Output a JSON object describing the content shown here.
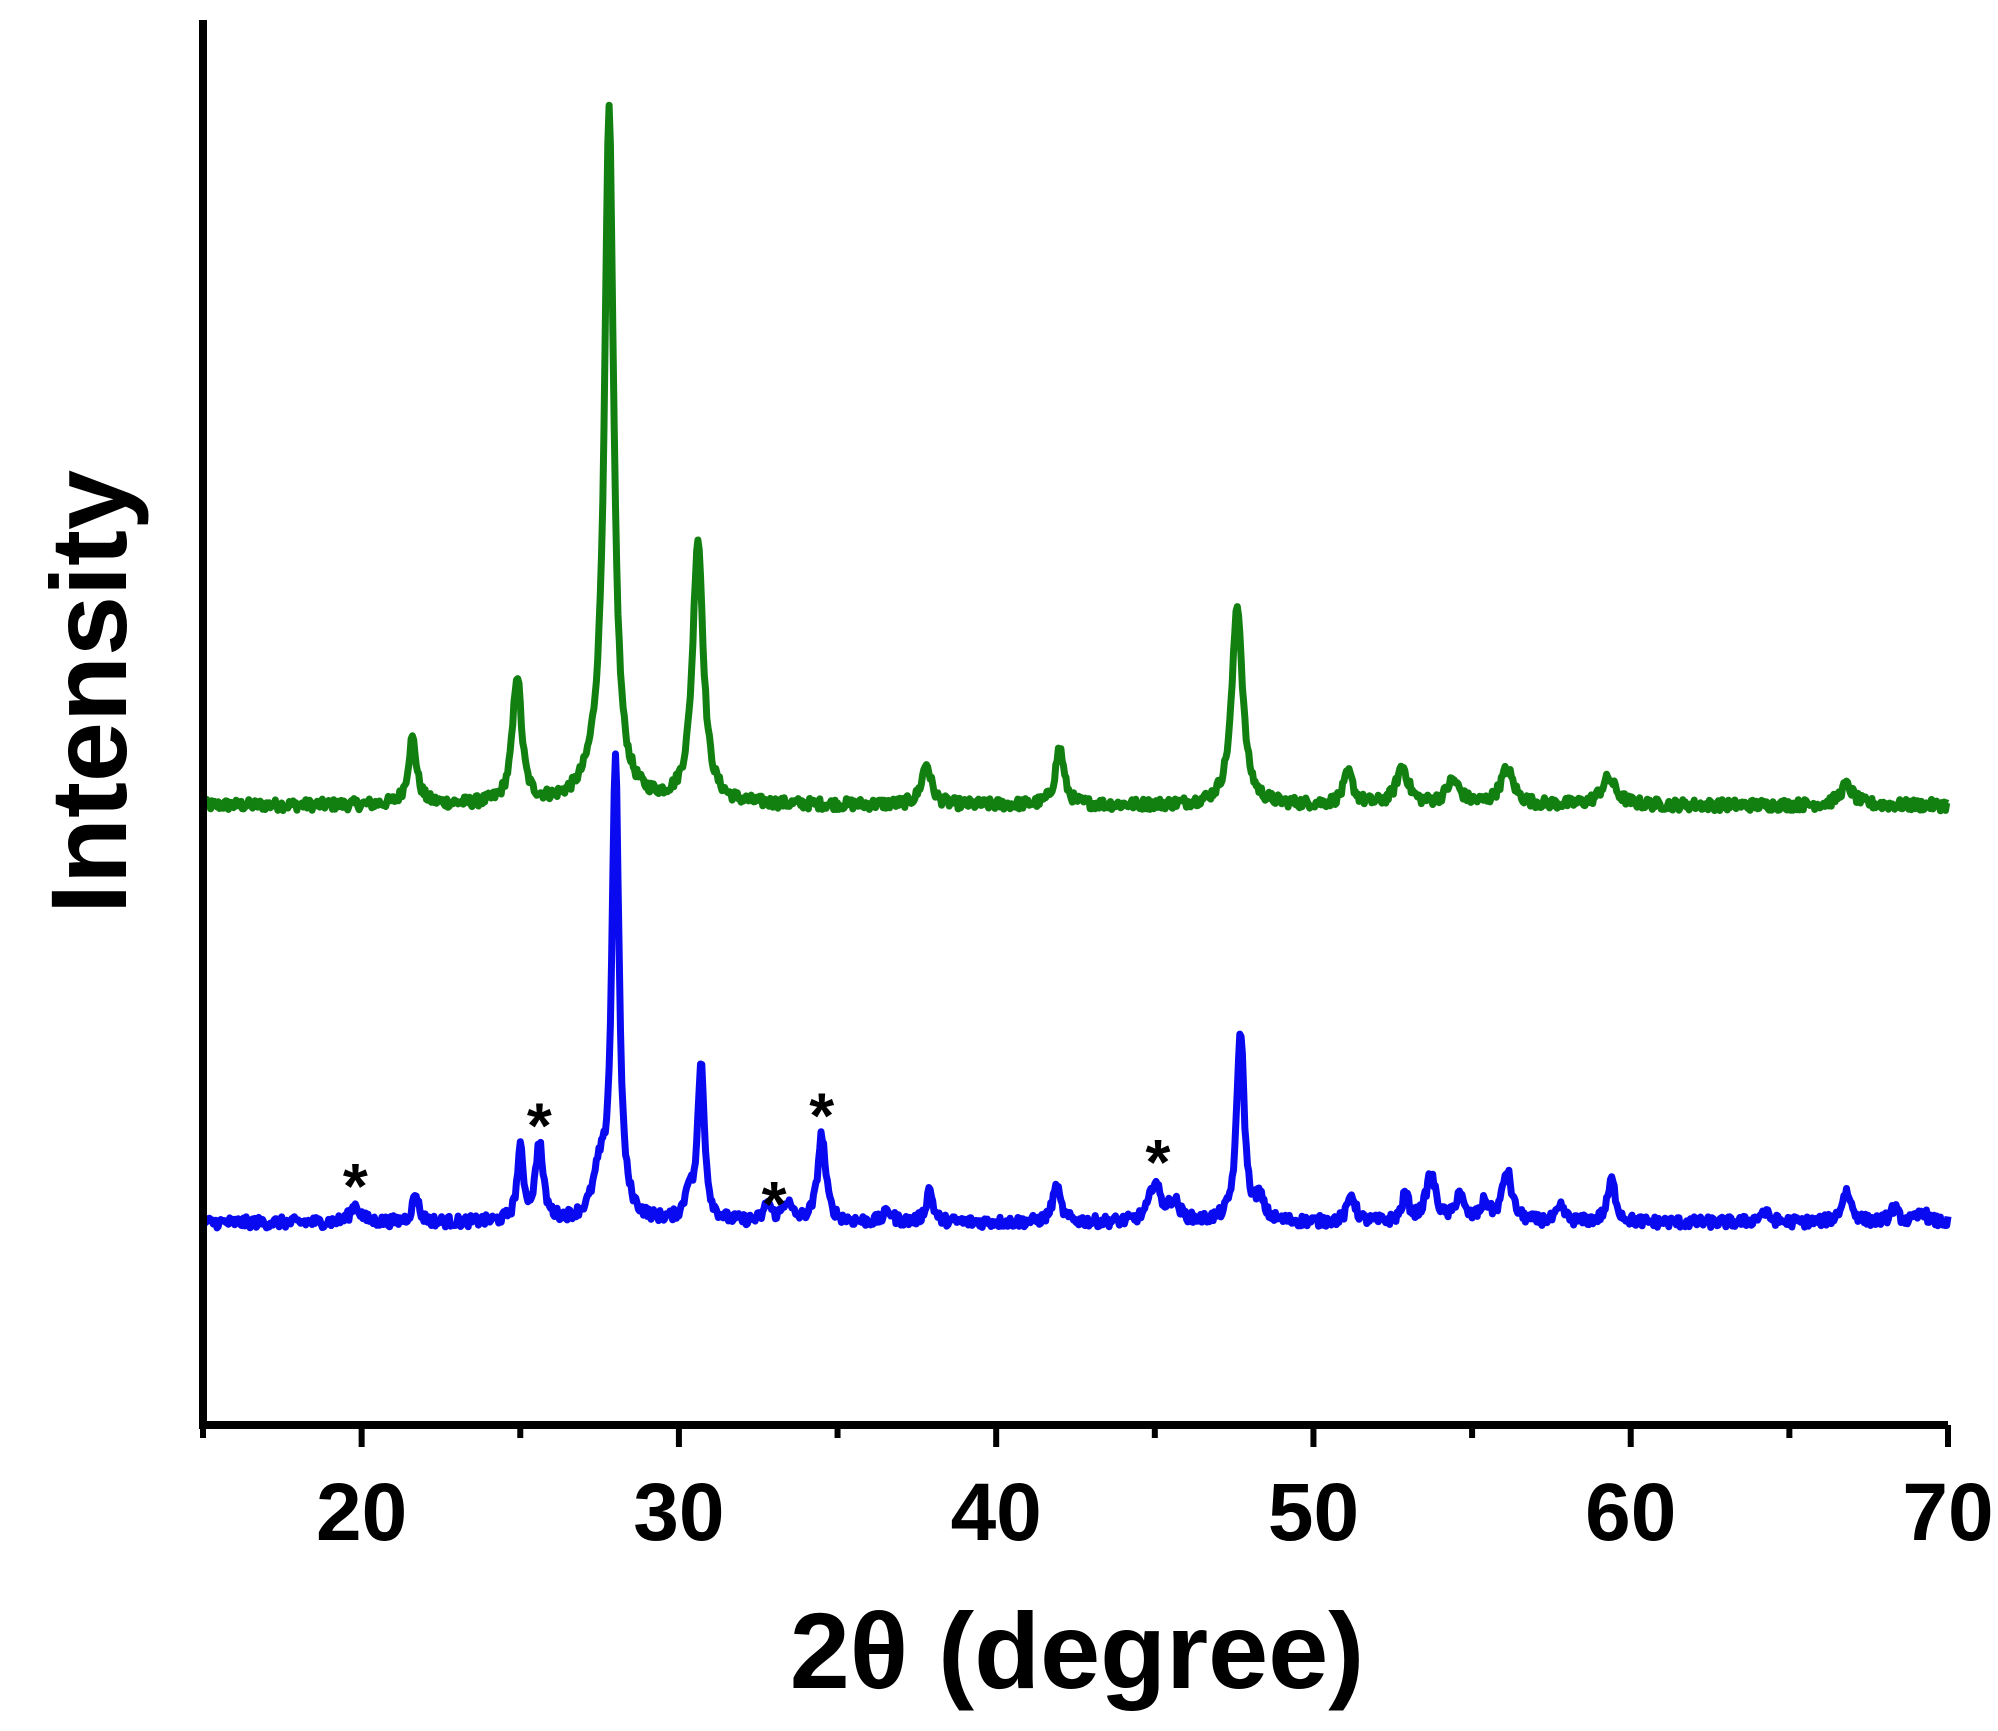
{
  "chart_data": {
    "type": "line",
    "title": "",
    "xlabel": "2θ (degree)",
    "ylabel": "Intensity",
    "xlim": [
      15,
      70
    ],
    "ylim": [
      0,
      1
    ],
    "grid": false,
    "legend": "none",
    "x_ticks": [
      20,
      30,
      40,
      50,
      60,
      70
    ],
    "y_ticks": [],
    "series": [
      {
        "color": "#118011",
        "baseline": 0.441,
        "noise": 0.004,
        "peaks": [
          {
            "x": 21.6,
            "h": 0.047,
            "w": 0.16
          },
          {
            "x": 24.9,
            "h": 0.091,
            "w": 0.17
          },
          {
            "x": 27.8,
            "h": 0.48,
            "w": 0.17
          },
          {
            "x": 27.5,
            "h": 0.018,
            "w": 0.5
          },
          {
            "x": 30.6,
            "h": 0.188,
            "w": 0.2
          },
          {
            "x": 37.8,
            "h": 0.029,
            "w": 0.18
          },
          {
            "x": 42.0,
            "h": 0.041,
            "w": 0.16
          },
          {
            "x": 47.6,
            "h": 0.143,
            "w": 0.2
          },
          {
            "x": 51.1,
            "h": 0.022,
            "w": 0.18
          },
          {
            "x": 52.8,
            "h": 0.027,
            "w": 0.22
          },
          {
            "x": 54.4,
            "h": 0.017,
            "w": 0.25
          },
          {
            "x": 56.1,
            "h": 0.025,
            "w": 0.25
          },
          {
            "x": 59.3,
            "h": 0.019,
            "w": 0.28
          },
          {
            "x": 66.8,
            "h": 0.014,
            "w": 0.25
          }
        ]
      },
      {
        "color": "#0a0af0",
        "baseline": 0.144,
        "noise": 0.004,
        "peaks": [
          {
            "x": 19.8,
            "h": 0.012,
            "w": 0.18
          },
          {
            "x": 21.7,
            "h": 0.02,
            "w": 0.12
          },
          {
            "x": 25.0,
            "h": 0.05,
            "w": 0.12
          },
          {
            "x": 25.6,
            "h": 0.055,
            "w": 0.14
          },
          {
            "x": 27.5,
            "h": 0.03,
            "w": 0.25
          },
          {
            "x": 28.0,
            "h": 0.33,
            "w": 0.13
          },
          {
            "x": 30.3,
            "h": 0.02,
            "w": 0.12
          },
          {
            "x": 30.7,
            "h": 0.112,
            "w": 0.13
          },
          {
            "x": 32.8,
            "h": 0.013,
            "w": 0.12
          },
          {
            "x": 33.4,
            "h": 0.014,
            "w": 0.16
          },
          {
            "x": 34.5,
            "h": 0.062,
            "w": 0.15
          },
          {
            "x": 36.6,
            "h": 0.008,
            "w": 0.15
          },
          {
            "x": 37.9,
            "h": 0.024,
            "w": 0.12
          },
          {
            "x": 41.9,
            "h": 0.025,
            "w": 0.15
          },
          {
            "x": 45.0,
            "h": 0.028,
            "w": 0.2
          },
          {
            "x": 45.6,
            "h": 0.014,
            "w": 0.2
          },
          {
            "x": 47.7,
            "h": 0.137,
            "w": 0.14
          },
          {
            "x": 48.3,
            "h": 0.015,
            "w": 0.15
          },
          {
            "x": 51.2,
            "h": 0.02,
            "w": 0.14
          },
          {
            "x": 52.9,
            "h": 0.02,
            "w": 0.12
          },
          {
            "x": 53.7,
            "h": 0.034,
            "w": 0.18
          },
          {
            "x": 54.6,
            "h": 0.02,
            "w": 0.14
          },
          {
            "x": 55.4,
            "h": 0.013,
            "w": 0.15
          },
          {
            "x": 56.1,
            "h": 0.036,
            "w": 0.18
          },
          {
            "x": 57.8,
            "h": 0.01,
            "w": 0.15
          },
          {
            "x": 59.4,
            "h": 0.03,
            "w": 0.15
          },
          {
            "x": 64.2,
            "h": 0.007,
            "w": 0.2
          },
          {
            "x": 66.8,
            "h": 0.022,
            "w": 0.18
          },
          {
            "x": 68.3,
            "h": 0.01,
            "w": 0.15
          },
          {
            "x": 69.2,
            "h": 0.008,
            "w": 0.15
          }
        ]
      }
    ],
    "annotations": [
      {
        "text": "*",
        "x": 19.8,
        "y": 0.183
      },
      {
        "text": "*",
        "x": 25.6,
        "y": 0.226
      },
      {
        "text": "*",
        "x": 33.0,
        "y": 0.17
      },
      {
        "text": "*",
        "x": 34.5,
        "y": 0.233
      },
      {
        "text": "*",
        "x": 45.1,
        "y": 0.2
      }
    ]
  }
}
